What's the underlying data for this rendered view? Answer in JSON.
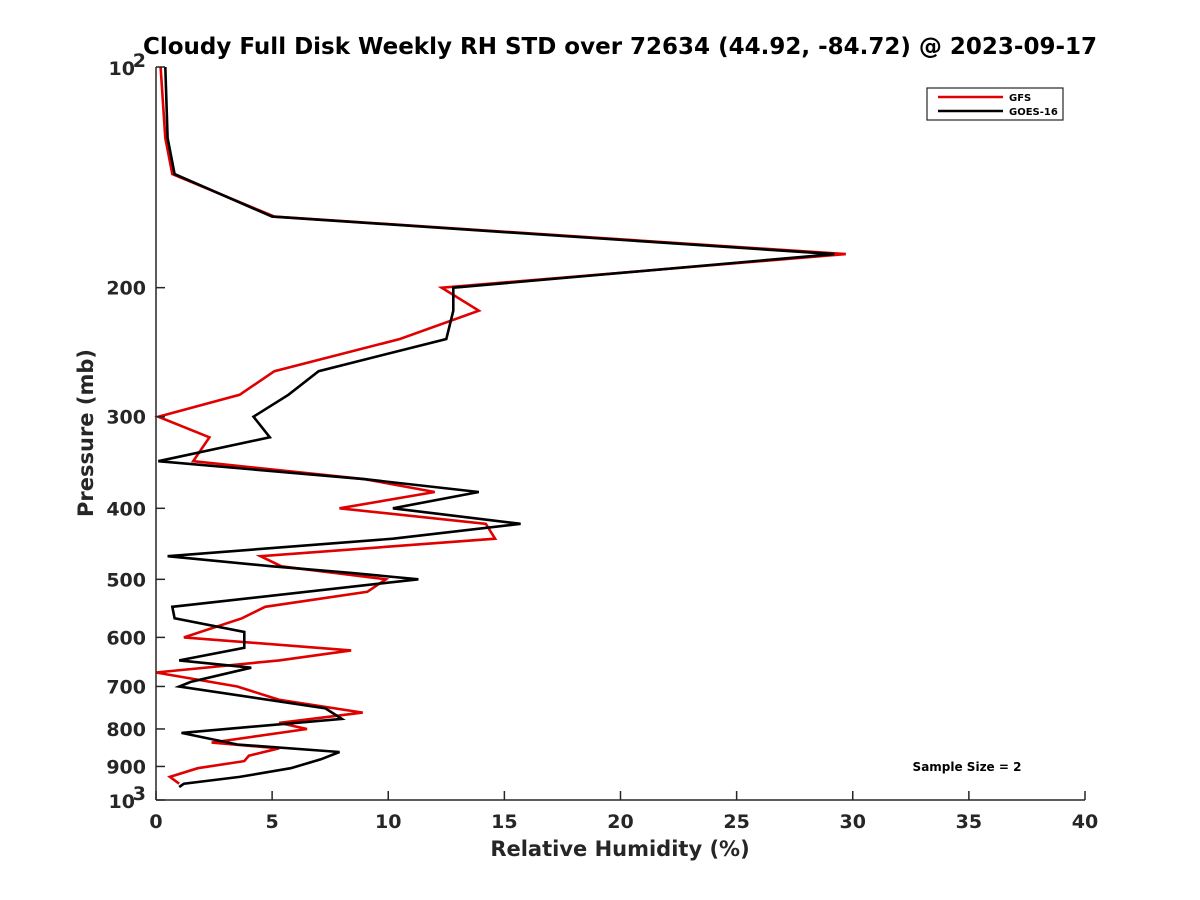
{
  "chart_data": {
    "type": "line",
    "title": "Cloudy Full Disk Weekly RH STD over 72634 (44.92, -84.72) @ 2023-09-17",
    "xlabel": "Relative Humidity (%)",
    "ylabel": "Pressure (mb)",
    "xlim": [
      0,
      40
    ],
    "ylim": [
      100,
      1000
    ],
    "yscale": "log",
    "y_reversed": true,
    "grid": false,
    "legend_position": "top-right",
    "x_ticks": [
      "0",
      "5",
      "10",
      "15",
      "20",
      "25",
      "30",
      "35",
      "40"
    ],
    "y_ticks": [
      {
        "value": 100,
        "base": "10",
        "exp": "2"
      },
      {
        "value": 200,
        "label": "200"
      },
      {
        "value": 300,
        "label": "300"
      },
      {
        "value": 400,
        "label": "400"
      },
      {
        "value": 500,
        "label": "500"
      },
      {
        "value": 600,
        "label": "600"
      },
      {
        "value": 700,
        "label": "700"
      },
      {
        "value": 800,
        "label": "800"
      },
      {
        "value": 900,
        "label": "900"
      },
      {
        "value": 1000,
        "base": "10",
        "exp": "3"
      }
    ],
    "series": [
      {
        "name": "GFS",
        "color": "#e00000",
        "points": [
          [
            0.2,
            100
          ],
          [
            0.4,
            125
          ],
          [
            0.7,
            140
          ],
          [
            5.1,
            160
          ],
          [
            29.7,
            180
          ],
          [
            12.3,
            200
          ],
          [
            13.9,
            215
          ],
          [
            10.5,
            235
          ],
          [
            5.1,
            260
          ],
          [
            3.6,
            280
          ],
          [
            0.1,
            300
          ],
          [
            2.3,
            320
          ],
          [
            1.6,
            345
          ],
          [
            9.0,
            365
          ],
          [
            12.0,
            380
          ],
          [
            7.9,
            400
          ],
          [
            14.2,
            420
          ],
          [
            14.6,
            440
          ],
          [
            4.5,
            465
          ],
          [
            5.4,
            480
          ],
          [
            9.9,
            500
          ],
          [
            9.1,
            520
          ],
          [
            4.7,
            545
          ],
          [
            3.7,
            565
          ],
          [
            1.2,
            600
          ],
          [
            8.4,
            625
          ],
          [
            5.3,
            645
          ],
          [
            0.0,
            670
          ],
          [
            3.5,
            700
          ],
          [
            5.3,
            730
          ],
          [
            8.9,
            760
          ],
          [
            5.3,
            785
          ],
          [
            6.5,
            800
          ],
          [
            2.4,
            835
          ],
          [
            5.3,
            850
          ],
          [
            4.0,
            870
          ],
          [
            3.8,
            885
          ],
          [
            1.8,
            905
          ],
          [
            0.6,
            930
          ],
          [
            1.0,
            950
          ]
        ]
      },
      {
        "name": "GOES-16",
        "color": "#000000",
        "points": [
          [
            0.4,
            100
          ],
          [
            0.5,
            125
          ],
          [
            0.8,
            140
          ],
          [
            5.0,
            160
          ],
          [
            29.2,
            180
          ],
          [
            12.8,
            200
          ],
          [
            12.8,
            215
          ],
          [
            12.5,
            235
          ],
          [
            7.0,
            260
          ],
          [
            5.7,
            280
          ],
          [
            4.2,
            300
          ],
          [
            4.9,
            320
          ],
          [
            0.1,
            345
          ],
          [
            9.0,
            365
          ],
          [
            13.9,
            380
          ],
          [
            10.2,
            400
          ],
          [
            15.7,
            420
          ],
          [
            10.2,
            440
          ],
          [
            0.5,
            465
          ],
          [
            5.0,
            480
          ],
          [
            8.4,
            490
          ],
          [
            11.3,
            500
          ],
          [
            0.7,
            545
          ],
          [
            0.8,
            565
          ],
          [
            3.8,
            590
          ],
          [
            3.8,
            620
          ],
          [
            1.0,
            645
          ],
          [
            4.1,
            660
          ],
          [
            1.5,
            690
          ],
          [
            1.0,
            700
          ],
          [
            7.3,
            750
          ],
          [
            8.0,
            775
          ],
          [
            1.1,
            810
          ],
          [
            3.5,
            840
          ],
          [
            7.9,
            860
          ],
          [
            7.1,
            880
          ],
          [
            5.8,
            905
          ],
          [
            3.6,
            930
          ],
          [
            1.2,
            950
          ],
          [
            1.0,
            960
          ]
        ]
      }
    ],
    "annotation": "Sample Size = 2"
  }
}
